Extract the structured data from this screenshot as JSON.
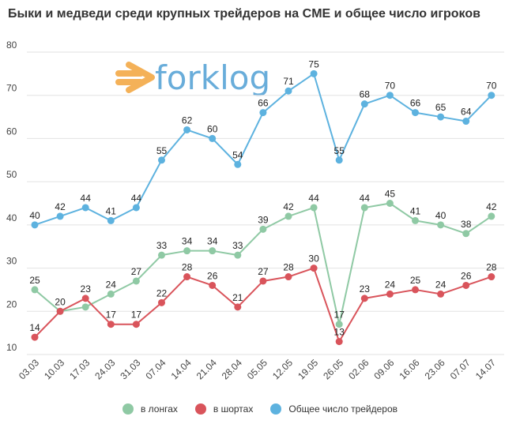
{
  "chart_data": {
    "type": "line",
    "title": "Быки и медведи среди крупных трейдеров на CME и общее число игроков",
    "xlabel": "",
    "ylabel": "",
    "categories": [
      "03.03",
      "10.03",
      "17.03",
      "24.03",
      "31.03",
      "07.04",
      "14.04",
      "21.04",
      "28.04",
      "05.05",
      "12.05",
      "19.05",
      "26.05",
      "02.06",
      "09.06",
      "16.06",
      "23.06",
      "07.07",
      "14.07"
    ],
    "ylim": [
      10,
      80
    ],
    "yticks": [
      10,
      20,
      30,
      40,
      50,
      60,
      70,
      80
    ],
    "grid": true,
    "legend_position": "bottom",
    "series": [
      {
        "name": "в лонгах",
        "color": "#8fc9a4",
        "values": [
          25,
          20,
          21,
          24,
          27,
          33,
          34,
          34,
          33,
          39,
          42,
          44,
          17,
          44,
          45,
          41,
          40,
          38,
          42
        ]
      },
      {
        "name": "в шортах",
        "color": "#d9545b",
        "values": [
          14,
          20,
          23,
          17,
          17,
          22,
          28,
          26,
          21,
          27,
          28,
          30,
          13,
          23,
          24,
          25,
          24,
          26,
          28
        ]
      },
      {
        "name": "Общее число трейдеров",
        "color": "#5db2df",
        "values": [
          40,
          42,
          44,
          41,
          44,
          55,
          62,
          60,
          54,
          66,
          71,
          75,
          55,
          68,
          70,
          66,
          65,
          64,
          70
        ]
      }
    ],
    "labels_shown": [
      [
        25,
        20,
        null,
        24,
        27,
        33,
        34,
        34,
        33,
        39,
        42,
        44,
        17,
        44,
        45,
        41,
        40,
        38,
        42
      ],
      [
        14,
        null,
        23,
        17,
        17,
        22,
        28,
        26,
        21,
        27,
        28,
        30,
        13,
        23,
        24,
        25,
        24,
        26,
        28
      ],
      [
        40,
        42,
        44,
        41,
        44,
        55,
        62,
        60,
        54,
        66,
        71,
        75,
        55,
        68,
        70,
        66,
        65,
        64,
        70
      ]
    ]
  },
  "watermark": {
    "brand_text": "forklog",
    "logo_color": "#f3a43b",
    "text_color": "#4f9fd4"
  }
}
